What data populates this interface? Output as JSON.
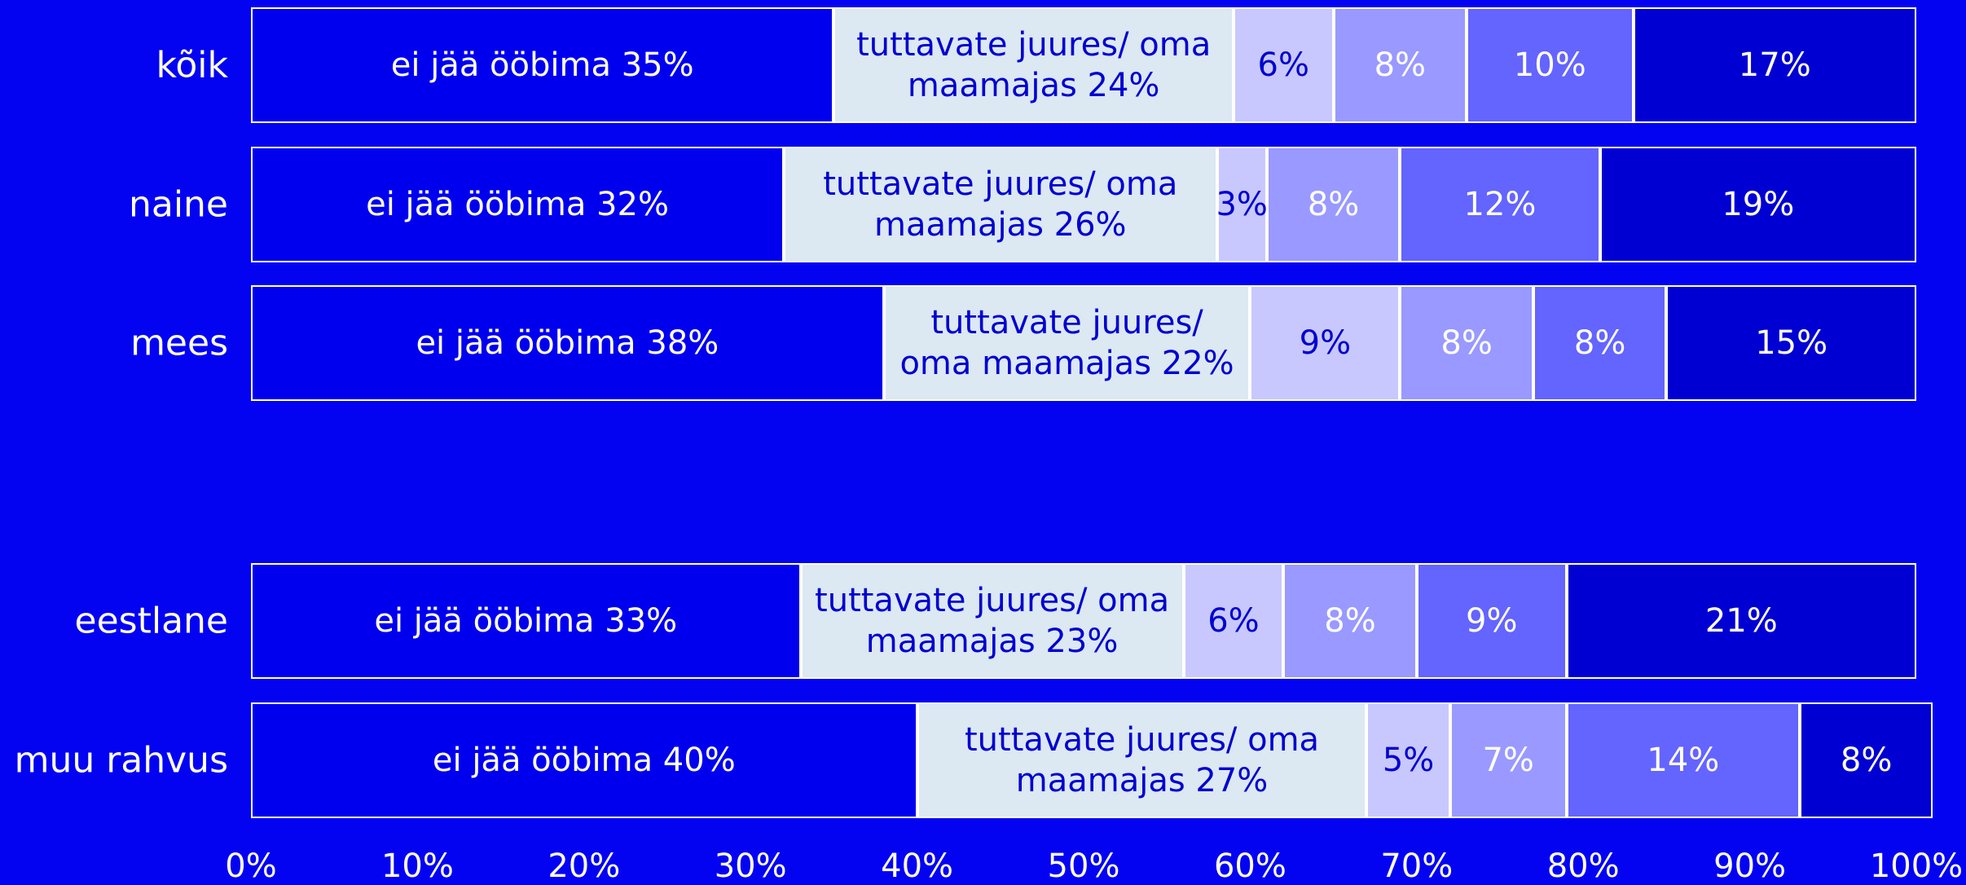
{
  "chart_data": {
    "type": "stacked_barh",
    "categories": [
      "kõik",
      "naine",
      "mees",
      null,
      "eestlane",
      "muu rahvus"
    ],
    "series": [
      {
        "color": "#0000ee",
        "values": [
          35,
          32,
          38,
          null,
          33,
          40
        ],
        "value_labels": [
          "ei jää ööbima 35%",
          "ei jää ööbima 32%",
          "ei jää ööbima 38%",
          null,
          "ei jää ööbima 33%",
          "ei jää ööbima 40%"
        ]
      },
      {
        "color": "#dce8f2",
        "values": [
          24,
          26,
          22,
          null,
          23,
          27
        ],
        "value_labels": [
          "tuttavate juures/ oma maamajas 24%",
          "tuttavate juures/ oma maamajas 26%",
          "tuttavate juures/ oma maamajas 22%",
          null,
          "tuttavate juures/ oma maamajas 23%",
          "tuttavate juures/ oma maamajas 27%"
        ]
      },
      {
        "color": "#c8c8ff",
        "values": [
          6,
          3,
          9,
          null,
          6,
          5
        ],
        "value_labels": [
          "6%",
          "3%",
          "9%",
          null,
          "6%",
          "5%"
        ]
      },
      {
        "color": "#9999ff",
        "values": [
          8,
          8,
          8,
          null,
          8,
          7
        ],
        "value_labels": [
          "8%",
          "8%",
          "8%",
          null,
          "8%",
          "7%"
        ]
      },
      {
        "color": "#6464ff",
        "values": [
          10,
          12,
          8,
          null,
          9,
          14
        ],
        "value_labels": [
          "10%",
          "12%",
          "8%",
          null,
          "9%",
          "14%"
        ]
      },
      {
        "color": "#0000d2",
        "values": [
          17,
          19,
          15,
          null,
          21,
          8
        ],
        "value_labels": [
          "17%",
          "19%",
          "15%",
          null,
          "21%",
          "8%"
        ]
      }
    ],
    "xlim": [
      0,
      100
    ],
    "xticks": [
      {
        "value": 0,
        "label": "0%"
      },
      {
        "value": 10,
        "label": "10%"
      },
      {
        "value": 20,
        "label": "20%"
      },
      {
        "value": 30,
        "label": "30%"
      },
      {
        "value": 40,
        "label": "40%"
      },
      {
        "value": 50,
        "label": "50%"
      },
      {
        "value": 60,
        "label": "60%"
      },
      {
        "value": 70,
        "label": "70%"
      },
      {
        "value": 80,
        "label": "80%"
      },
      {
        "value": 90,
        "label": "90%"
      },
      {
        "value": 100,
        "label": "100%"
      }
    ]
  }
}
